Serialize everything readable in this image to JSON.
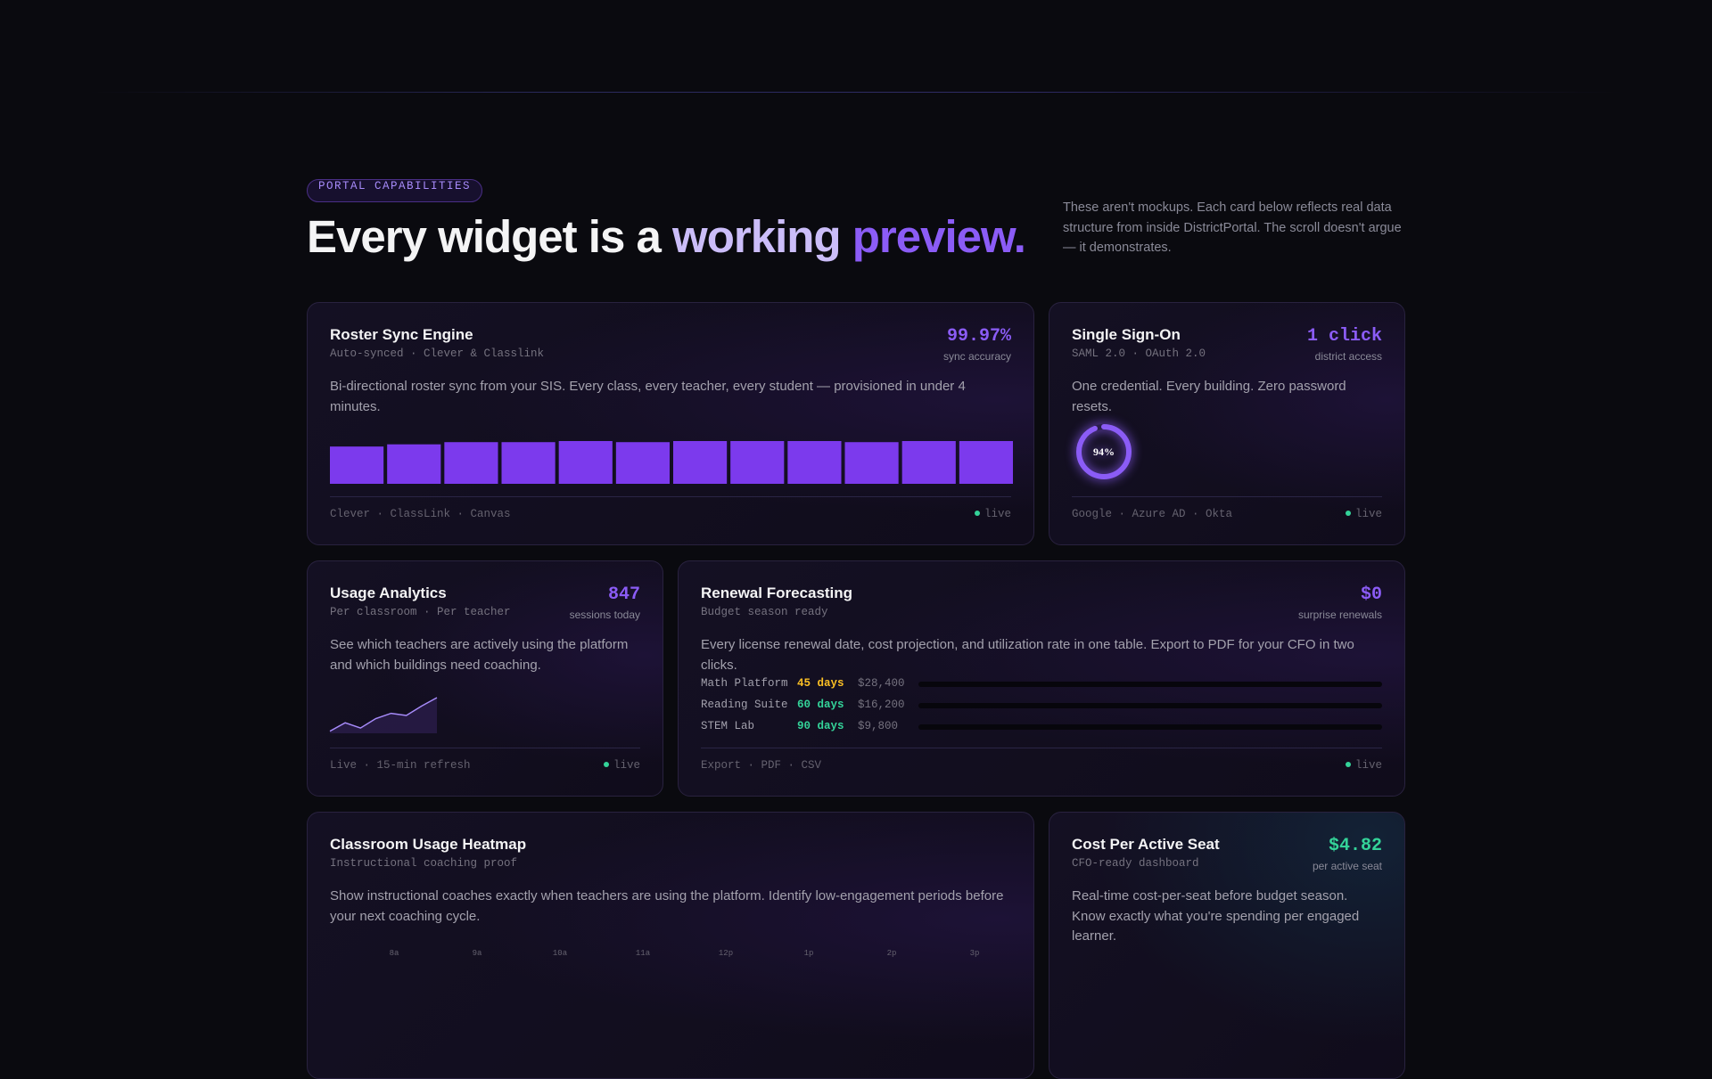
{
  "header": {
    "badge": "PORTAL CAPABILITIES",
    "title": {
      "lead": "Every widget is a",
      "accent1": "working",
      "accent2": "preview."
    },
    "intro": "These aren't mockups. Each card below reflects real data structure from inside DistrictPortal. The scroll doesn't argue — it demonstrates."
  },
  "cards": [
    {
      "title": "Roster Sync Engine",
      "subtitle": "Auto-synced · Clever & Classlink",
      "metric": "99.97%",
      "metric_label": "sync accuracy",
      "description": "Bi-directional roster sync from your SIS. Every class, every teacher, every student — provisioned in under 4 minutes.",
      "bars": [
        34,
        36,
        38,
        38,
        39,
        38,
        39,
        39,
        39,
        38,
        39,
        39
      ],
      "bar_color": "#7c3aed",
      "footer": "Clever · ClassLink · Canvas",
      "status": "live"
    },
    {
      "title": "Single Sign-On",
      "subtitle": "SAML 2.0 · OAuth 2.0",
      "metric": "1 click",
      "metric_label": "district access",
      "description": "One credential. Every building. Zero password resets.",
      "donut": {
        "value": 94,
        "label": "94%"
      },
      "donut_color": "#8b5cf6",
      "footer": "Google · Azure AD · Okta",
      "status": "live"
    },
    {
      "title": "Usage Analytics",
      "subtitle": "Per classroom · Per teacher",
      "metric": "847",
      "metric_label": "sessions today",
      "description": "See which teachers are actively using the platform and which buildings need coaching.",
      "sparkline": [
        2,
        10,
        5,
        14,
        19,
        17,
        26,
        34
      ],
      "line_color": "#a78bfa",
      "footer": "Live · 15-min refresh",
      "status": "live"
    },
    {
      "title": "Renewal Forecasting",
      "subtitle": "Budget season ready",
      "metric": "$0",
      "metric_label": "surprise renewals",
      "description": "Every license renewal date, cost projection, and utilization rate in one table. Export to PDF for your CFO in two clicks.",
      "renewals": [
        {
          "product": "Math Platform",
          "days": "45 days",
          "amount": "$28,400",
          "color": "#fbbf24"
        },
        {
          "product": "Reading Suite",
          "days": "60 days",
          "amount": "$16,200",
          "color": "#34d399"
        },
        {
          "product": "STEM Lab",
          "days": "90 days",
          "amount": "$9,800",
          "color": "#34d399"
        }
      ],
      "footer": "Export · PDF · CSV",
      "status": "live"
    },
    {
      "title": "Classroom Usage Heatmap",
      "subtitle": "Instructional coaching proof",
      "description": "Show instructional coaches exactly when teachers are using the platform. Identify low-engagement periods before your next coaching cycle.",
      "hours": [
        "8a",
        "9a",
        "10a",
        "11a",
        "12p",
        "1p",
        "2p",
        "3p"
      ]
    },
    {
      "title": "Cost Per Active Seat",
      "subtitle": "CFO-ready dashboard",
      "metric": "$4.82",
      "metric_label": "per active seat",
      "description": "Real-time cost-per-seat before budget season. Know exactly what you're spending per engaged learner."
    }
  ]
}
